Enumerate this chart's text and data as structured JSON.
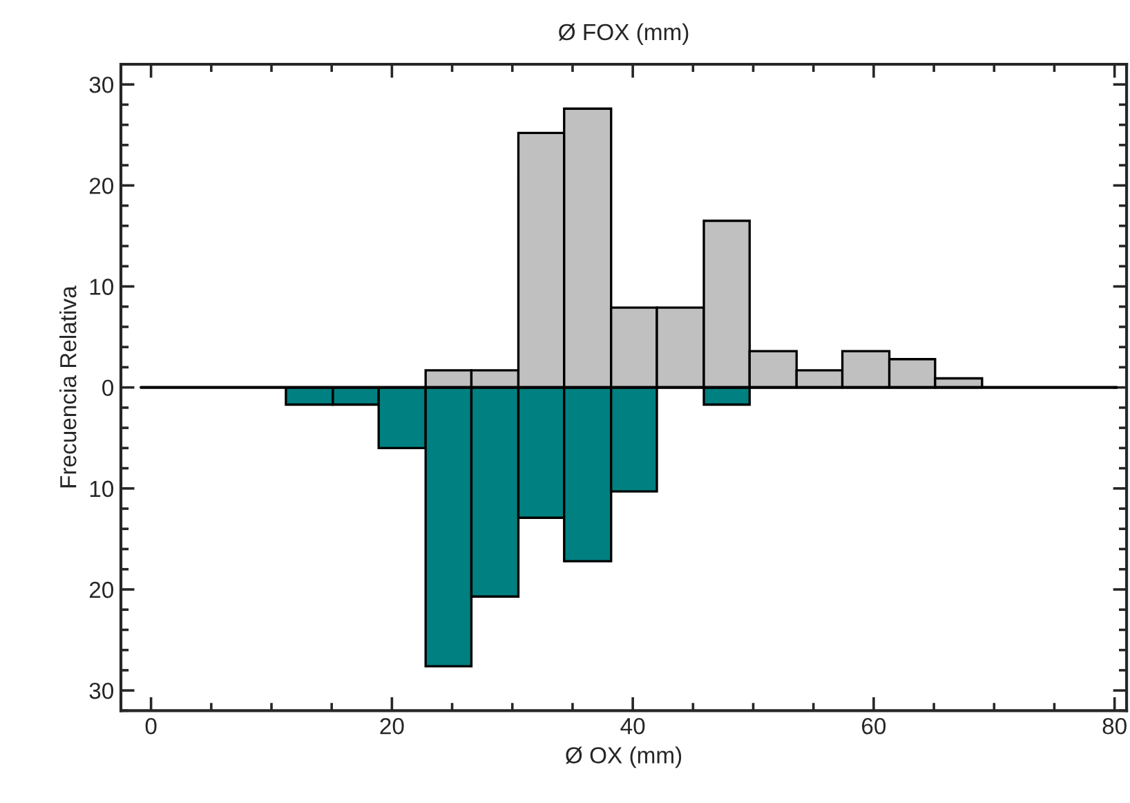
{
  "chart_data": {
    "type": "histogram",
    "xlabel": "Ø OX (mm)",
    "x2label": "Ø FOX (mm)",
    "ylabel": "Frecuencia Relativa",
    "bins": [
      11.2,
      15.1,
      18.9,
      22.8,
      26.6,
      30.5,
      34.3,
      38.2,
      42.0,
      45.9,
      49.7,
      53.6,
      57.4,
      61.3,
      65.1,
      69.0
    ],
    "series": [
      {
        "color": "#c0c0c0",
        "values": [
          null,
          null,
          null,
          1.7,
          1.7,
          25.2,
          27.6,
          7.9,
          7.9,
          16.5,
          3.6,
          1.7,
          3.6,
          2.8,
          0.9
        ]
      },
      {
        "color": "#008080",
        "values": [
          -1.7,
          -1.7,
          -6.0,
          -27.6,
          -20.7,
          -12.9,
          -17.2,
          -10.3,
          null,
          -1.7,
          null,
          null,
          null,
          null,
          null
        ]
      }
    ],
    "xlim": [
      -2.5,
      81
    ],
    "xticks": [
      0,
      20,
      40,
      60,
      80
    ],
    "ylim": [
      -32,
      32
    ],
    "yticks": [
      {
        "value": -30,
        "label": "30"
      },
      {
        "value": -20,
        "label": "20"
      },
      {
        "value": -10,
        "label": "10"
      },
      0,
      10,
      20,
      30
    ],
    "ref_lines": [
      {
        "axis": "y",
        "value": 0,
        "color": "#000000"
      }
    ],
    "grid": false,
    "legend": false
  }
}
